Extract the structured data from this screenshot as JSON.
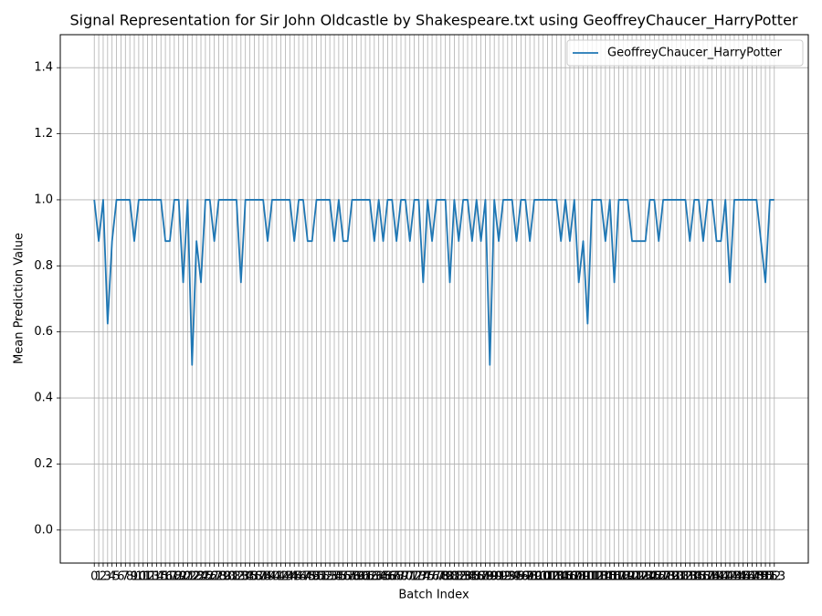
{
  "chart_data": {
    "type": "line",
    "title": "Signal Representation for Sir John Oldcastle by Shakespeare.txt using GeoffreyChaucer_HarryPotter",
    "xlabel": "Batch Index",
    "ylabel": "Mean Prediction Value",
    "x": [
      0,
      1,
      2,
      3,
      4,
      5,
      6,
      7,
      8,
      9,
      10,
      11,
      12,
      13,
      14,
      15,
      16,
      17,
      18,
      19,
      20,
      21,
      22,
      23,
      24,
      25,
      26,
      27,
      28,
      29,
      30,
      31,
      32,
      33,
      34,
      35,
      36,
      37,
      38,
      39,
      40,
      41,
      42,
      43,
      44,
      45,
      46,
      47,
      48,
      49,
      50,
      51,
      52,
      53,
      54,
      55,
      56,
      57,
      58,
      59,
      60,
      61,
      62,
      63,
      64,
      65,
      66,
      67,
      68,
      69,
      70,
      71,
      72,
      73,
      74,
      75,
      76,
      77,
      78,
      79,
      80,
      81,
      82,
      83,
      84,
      85,
      86,
      87,
      88,
      89,
      90,
      91,
      92,
      93,
      94,
      95,
      96,
      97,
      98,
      99,
      100,
      101,
      102,
      103,
      104,
      105,
      106,
      107,
      108,
      109,
      110,
      111,
      112,
      113,
      114,
      115,
      116,
      117,
      118,
      119,
      120,
      121,
      122,
      123,
      124,
      125,
      126,
      127,
      128,
      129,
      130,
      131,
      132,
      133,
      134,
      135,
      136,
      137,
      138,
      139,
      140,
      141,
      142,
      143,
      144,
      145,
      146,
      147,
      148,
      149,
      150,
      151,
      152,
      153
    ],
    "series": [
      {
        "name": "GeoffreyChaucer_HarryPotter",
        "color": "#1f77b4",
        "values": [
          1,
          0.875,
          1,
          0.625,
          0.875,
          1,
          1,
          1,
          1,
          0.875,
          1,
          1,
          1,
          1,
          1,
          1,
          0.875,
          0.875,
          1,
          1,
          0.75,
          1,
          0.5,
          0.875,
          0.75,
          1,
          1,
          0.875,
          1,
          1,
          1,
          1,
          1,
          0.75,
          1,
          1,
          1,
          1,
          1,
          0.875,
          1,
          1,
          1,
          1,
          1,
          0.875,
          1,
          1,
          0.875,
          0.875,
          1,
          1,
          1,
          1,
          0.875,
          1,
          0.875,
          0.875,
          1,
          1,
          1,
          1,
          1,
          0.875,
          1,
          0.875,
          1,
          1,
          0.875,
          1,
          1,
          0.875,
          1,
          1,
          0.75,
          1,
          0.875,
          1,
          1,
          1,
          0.75,
          1,
          0.875,
          1,
          1,
          0.875,
          1,
          0.875,
          1,
          0.5,
          1,
          0.875,
          1,
          1,
          1,
          0.875,
          1,
          1,
          0.875,
          1,
          1,
          1,
          1,
          1,
          1,
          0.875,
          1,
          0.875,
          1,
          0.75,
          0.875,
          0.625,
          1,
          1,
          1,
          0.875,
          1,
          0.75,
          1,
          1,
          1,
          0.875,
          0.875,
          0.875,
          0.875,
          1,
          1,
          0.875,
          1,
          1,
          1,
          1,
          1,
          1,
          0.875,
          1,
          1,
          0.875,
          1,
          1,
          0.875,
          0.875,
          1,
          0.75,
          1,
          1,
          1,
          1,
          1,
          1,
          0.875,
          0.75,
          1,
          1
        ]
      }
    ],
    "xlim": [
      -7.65,
      160.65
    ],
    "xticks": [
      0,
      1,
      2,
      3,
      4,
      5,
      6,
      7,
      8,
      9,
      10,
      11,
      12,
      13,
      14,
      15,
      16,
      17,
      18,
      19,
      20,
      21,
      22,
      23,
      24,
      25,
      26,
      27,
      28,
      29,
      30,
      31,
      32,
      33,
      34,
      35,
      36,
      37,
      38,
      39,
      40,
      41,
      42,
      43,
      44,
      45,
      46,
      47,
      48,
      49,
      50,
      51,
      52,
      53,
      54,
      55,
      56,
      57,
      58,
      59,
      60,
      61,
      62,
      63,
      64,
      65,
      66,
      67,
      68,
      69,
      70,
      71,
      72,
      73,
      74,
      75,
      76,
      77,
      78,
      79,
      80,
      81,
      82,
      83,
      84,
      85,
      86,
      87,
      88,
      89,
      90,
      91,
      92,
      93,
      94,
      95,
      96,
      97,
      98,
      99,
      100,
      101,
      102,
      103,
      104,
      105,
      106,
      107,
      108,
      109,
      110,
      111,
      112,
      113,
      114,
      115,
      116,
      117,
      118,
      119,
      120,
      121,
      122,
      123,
      124,
      125,
      126,
      127,
      128,
      129,
      130,
      131,
      132,
      133,
      134,
      135,
      136,
      137,
      138,
      139,
      140,
      141,
      142,
      143,
      144,
      145,
      146,
      147,
      148,
      149,
      150,
      151,
      152,
      153
    ],
    "ylim": [
      -0.1,
      1.5
    ],
    "yticks": [
      {
        "value": 0,
        "label": "0.0"
      },
      {
        "value": 0.2,
        "label": "0.2"
      },
      {
        "value": 0.4,
        "label": "0.4"
      },
      {
        "value": 0.6,
        "label": "0.6"
      },
      {
        "value": 0.8,
        "label": "0.8"
      },
      {
        "value": 1,
        "label": "1.0"
      },
      {
        "value": 1.2,
        "label": "1.2"
      },
      {
        "value": 1.4,
        "label": "1.4"
      }
    ],
    "grid": true,
    "legend": "upper right"
  }
}
